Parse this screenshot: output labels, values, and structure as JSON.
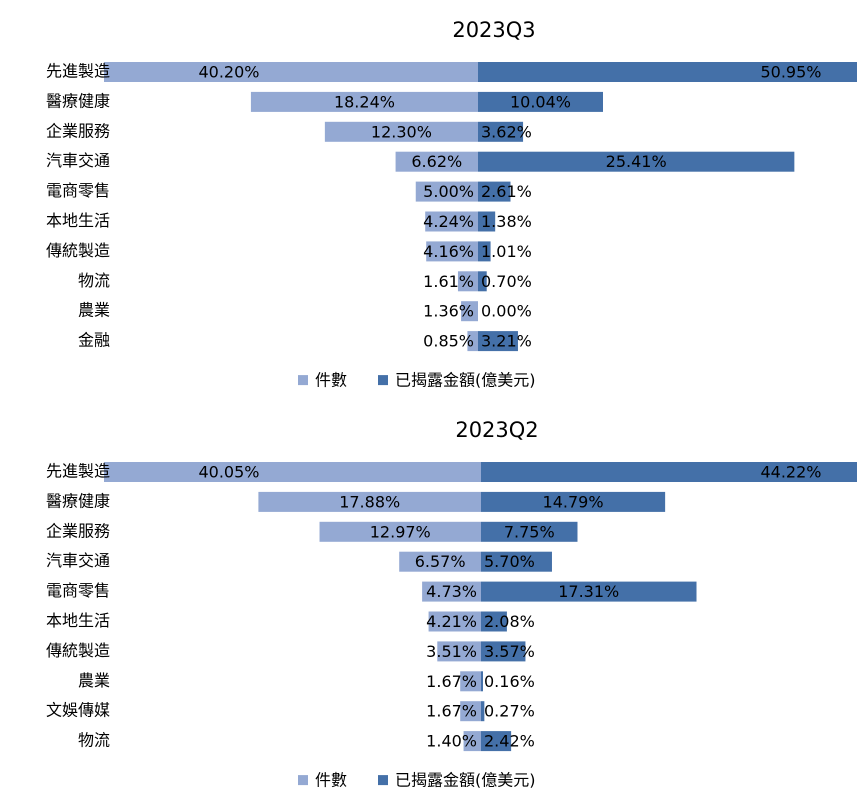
{
  "chart_data": [
    {
      "type": "butterfly",
      "title": "2023Q3",
      "categories": [
        "先進製造",
        "醫療健康",
        "企業服務",
        "汽車交通",
        "電商零售",
        "本地生活",
        "傳統製造",
        "物流",
        "農業",
        "金融"
      ],
      "series": [
        {
          "name": "件數",
          "color": "#94a9d3",
          "values": [
            40.2,
            18.24,
            12.3,
            6.62,
            5.0,
            4.24,
            4.16,
            1.61,
            1.36,
            0.85
          ],
          "value_labels": [
            "40.20%",
            "18.24%",
            "12.30%",
            "6.62%",
            "5.00%",
            "4.24%",
            "4.16%",
            "1.61%",
            "1.36%",
            "0.85%"
          ]
        },
        {
          "name": "已揭露金額(億美元)",
          "color": "#4470a8",
          "values": [
            50.95,
            10.04,
            3.62,
            25.41,
            2.61,
            1.38,
            1.01,
            0.7,
            0.0,
            3.21
          ],
          "value_labels": [
            "50.95%",
            "10.04%",
            "3.62%",
            "25.41%",
            "2.61%",
            "1.38%",
            "1.01%",
            "0.70%",
            "0.00%",
            "3.21%"
          ]
        }
      ]
    },
    {
      "type": "butterfly",
      "title": "2023Q2",
      "categories": [
        "先進製造",
        "醫療健康",
        "企業服務",
        "汽車交通",
        "電商零售",
        "本地生活",
        "傳統製造",
        "農業",
        "文娛傳媒",
        "物流"
      ],
      "series": [
        {
          "name": "件數",
          "color": "#94a9d3",
          "values": [
            40.05,
            17.88,
            12.97,
            6.57,
            4.73,
            4.21,
            3.51,
            1.67,
            1.67,
            1.4
          ],
          "value_labels": [
            "40.05%",
            "17.88%",
            "12.97%",
            "6.57%",
            "4.73%",
            "4.21%",
            "3.51%",
            "1.67%",
            "1.67%",
            "1.40%"
          ]
        },
        {
          "name": "已揭露金額(億美元)",
          "color": "#4470a8",
          "values": [
            44.22,
            14.79,
            7.75,
            5.7,
            17.31,
            2.08,
            3.57,
            0.16,
            0.27,
            2.42
          ],
          "value_labels": [
            "44.22%",
            "14.79%",
            "7.75%",
            "5.70%",
            "17.31%",
            "2.08%",
            "3.57%",
            "0.16%",
            "0.27%",
            "2.42%"
          ]
        }
      ]
    }
  ]
}
